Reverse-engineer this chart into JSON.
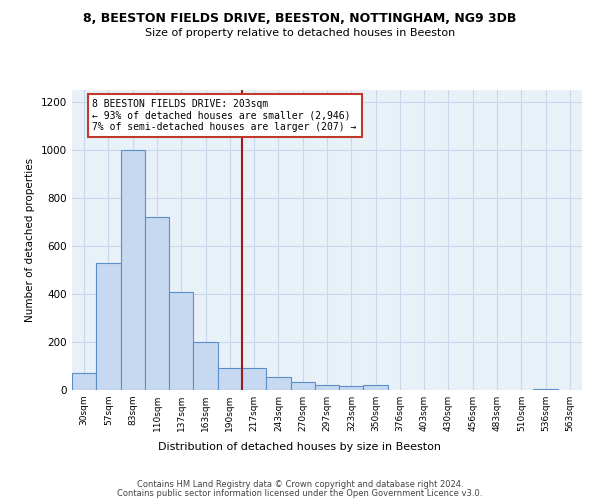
{
  "title_line1": "8, BEESTON FIELDS DRIVE, BEESTON, NOTTINGHAM, NG9 3DB",
  "title_line2": "Size of property relative to detached houses in Beeston",
  "xlabel": "Distribution of detached houses by size in Beeston",
  "ylabel": "Number of detached properties",
  "bar_labels": [
    "30sqm",
    "57sqm",
    "83sqm",
    "110sqm",
    "137sqm",
    "163sqm",
    "190sqm",
    "217sqm",
    "243sqm",
    "270sqm",
    "297sqm",
    "323sqm",
    "350sqm",
    "376sqm",
    "403sqm",
    "430sqm",
    "456sqm",
    "483sqm",
    "510sqm",
    "536sqm",
    "563sqm"
  ],
  "bar_values": [
    70,
    530,
    1000,
    720,
    410,
    200,
    90,
    90,
    55,
    35,
    20,
    15,
    20,
    0,
    0,
    0,
    0,
    0,
    0,
    5,
    0
  ],
  "bar_color": "#c6d9f1",
  "bar_edgecolor": "#5b8fc9",
  "vline_color": "#9b1c1c",
  "vline_x_index": 6.5,
  "annotation_title": "8 BEESTON FIELDS DRIVE: 203sqm",
  "annotation_line1": "← 93% of detached houses are smaller (2,946)",
  "annotation_line2": "7% of semi-detached houses are larger (207) →",
  "annotation_box_edgecolor": "#c0392b",
  "ylim": [
    0,
    1250
  ],
  "yticks": [
    0,
    200,
    400,
    600,
    800,
    1000,
    1200
  ],
  "grid_color": "#c8d8ea",
  "background_color": "#e8f0f8",
  "footer_line1": "Contains HM Land Registry data © Crown copyright and database right 2024.",
  "footer_line2": "Contains public sector information licensed under the Open Government Licence v3.0."
}
